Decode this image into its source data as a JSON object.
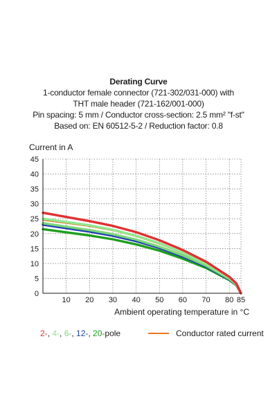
{
  "heading": {
    "title": "Derating Curve",
    "line1": "1-conductor female connector (721-302/031-000) with",
    "line2": "THT male header (721-162/001-000)",
    "line3": "Pin spacing: 5 mm / Conductor cross-section: 2.5 mm² \"f-st\"",
    "line4": "Based on: EN 60512-5-2 / Reduction factor: 0.8"
  },
  "legend": {
    "poles": [
      {
        "text": "2-",
        "color": "#e03030"
      },
      {
        "text": ", ",
        "color": "#1a1a1a"
      },
      {
        "text": "4-",
        "color": "#90e890"
      },
      {
        "text": ", ",
        "color": "#1a1a1a"
      },
      {
        "text": "6-",
        "color": "#7cd67c"
      },
      {
        "text": ", ",
        "color": "#1a1a1a"
      },
      {
        "text": "12-",
        "color": "#1f3fb0"
      },
      {
        "text": ", ",
        "color": "#1a1a1a"
      },
      {
        "text": "20-",
        "color": "#1e9e1e"
      },
      {
        "text": "pole",
        "color": "#1a1a1a"
      }
    ],
    "rated_label": "Conductor rated current",
    "rated_color": "#e8761e"
  },
  "chart_data": {
    "type": "line",
    "ylabel": "Current in A",
    "xlabel": "Ambient operating temperature in °C",
    "xlim": [
      0,
      85
    ],
    "ylim": [
      0,
      45
    ],
    "x_ticks": [
      10,
      20,
      30,
      40,
      50,
      60,
      70,
      80,
      85
    ],
    "y_ticks": [
      0,
      5,
      10,
      15,
      20,
      25,
      30,
      35,
      40,
      45
    ],
    "grid": true,
    "series": [
      {
        "name": "2-pole",
        "color": "#e03030",
        "points": [
          [
            0,
            27.0
          ],
          [
            20,
            24.2
          ],
          [
            30,
            22.6
          ],
          [
            40,
            20.5
          ],
          [
            50,
            17.8
          ],
          [
            60,
            14.5
          ],
          [
            70,
            10.6
          ],
          [
            80,
            5.5
          ],
          [
            83,
            3.3
          ],
          [
            85,
            0
          ]
        ]
      },
      {
        "name": "4-pole",
        "color": "#90e890",
        "points": [
          [
            0,
            25.0
          ],
          [
            20,
            22.8
          ],
          [
            30,
            21.3
          ],
          [
            40,
            19.3
          ],
          [
            50,
            16.8
          ],
          [
            60,
            13.6
          ],
          [
            70,
            9.9
          ],
          [
            80,
            5.1
          ],
          [
            83,
            3.1
          ],
          [
            85,
            0
          ]
        ]
      },
      {
        "name": "6-pole",
        "color": "#7cd67c",
        "points": [
          [
            0,
            23.5
          ],
          [
            20,
            21.2
          ],
          [
            30,
            19.8
          ],
          [
            40,
            18.0
          ],
          [
            50,
            15.6
          ],
          [
            60,
            12.7
          ],
          [
            70,
            9.3
          ],
          [
            80,
            4.8
          ],
          [
            83,
            2.9
          ],
          [
            85,
            0
          ]
        ]
      },
      {
        "name": "12-pole",
        "color": "#1f3fb0",
        "points": [
          [
            0,
            23.0
          ],
          [
            20,
            20.7
          ],
          [
            30,
            19.3
          ],
          [
            40,
            17.5
          ],
          [
            50,
            15.2
          ],
          [
            60,
            12.3
          ],
          [
            70,
            9.0
          ],
          [
            80,
            4.6
          ],
          [
            83,
            2.8
          ],
          [
            85,
            0
          ]
        ]
      },
      {
        "name": "20-pole",
        "color": "#1e9e1e",
        "points": [
          [
            0,
            21.5
          ],
          [
            20,
            19.4
          ],
          [
            30,
            18.1
          ],
          [
            40,
            16.4
          ],
          [
            50,
            14.3
          ],
          [
            60,
            11.6
          ],
          [
            70,
            8.5
          ],
          [
            80,
            4.4
          ],
          [
            83,
            2.7
          ],
          [
            85,
            0
          ]
        ]
      }
    ],
    "rated_current": {
      "name": "Conductor rated current",
      "color": "#e8761e",
      "points": [
        [
          0,
          24.5
        ],
        [
          20,
          22.4
        ],
        [
          30,
          21.0
        ],
        [
          40,
          19.0
        ],
        [
          50,
          16.5
        ],
        [
          60,
          13.3
        ],
        [
          70,
          9.7
        ],
        [
          80,
          5.0
        ],
        [
          83,
          3.0
        ],
        [
          85,
          0
        ]
      ]
    }
  }
}
